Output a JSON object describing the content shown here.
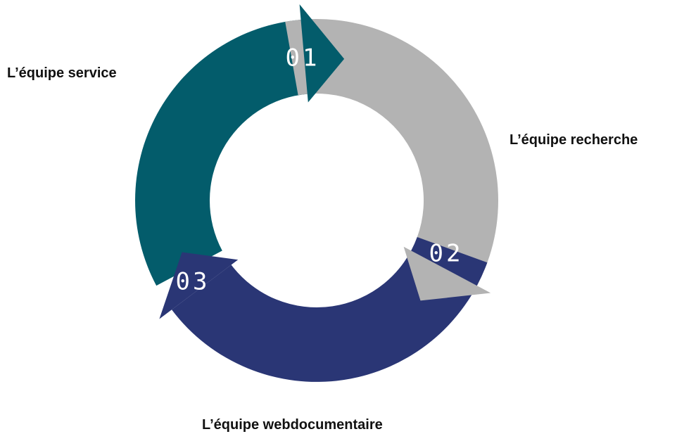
{
  "items": [
    {
      "number": "01",
      "label": "L’équipe service"
    },
    {
      "number": "02",
      "label": "L’équipe recherche"
    },
    {
      "number": "03",
      "label": "L’équipe webdocumentaire"
    }
  ]
}
